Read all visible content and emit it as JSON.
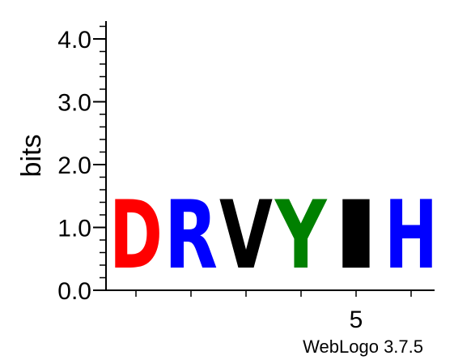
{
  "chart_data": {
    "type": "sequence-logo",
    "ylabel": "bits",
    "ylim": [
      0,
      4.3
    ],
    "yticks": [
      {
        "value": 0.0,
        "label": "0.0"
      },
      {
        "value": 1.0,
        "label": "1.0"
      },
      {
        "value": 2.0,
        "label": "2.0"
      },
      {
        "value": 3.0,
        "label": "3.0"
      },
      {
        "value": 4.0,
        "label": "4.0"
      }
    ],
    "positions": [
      1,
      2,
      3,
      4,
      5,
      6
    ],
    "xtick_labels": [
      {
        "position": 5,
        "label": "5"
      }
    ],
    "stacks": [
      {
        "position": 1,
        "letters": [
          {
            "letter": "D",
            "bits": 1.75,
            "color": "#ff0000"
          }
        ]
      },
      {
        "position": 2,
        "letters": [
          {
            "letter": "R",
            "bits": 1.75,
            "color": "#0000ff"
          }
        ]
      },
      {
        "position": 3,
        "letters": [
          {
            "letter": "V",
            "bits": 1.75,
            "color": "#000000"
          }
        ]
      },
      {
        "position": 4,
        "letters": [
          {
            "letter": "Y",
            "bits": 1.75,
            "color": "#008000"
          }
        ]
      },
      {
        "position": 5,
        "letters": [
          {
            "letter": "I",
            "bits": 1.75,
            "color": "#000000"
          }
        ]
      },
      {
        "position": 6,
        "letters": [
          {
            "letter": "H",
            "bits": 1.75,
            "color": "#0000ff"
          }
        ]
      }
    ]
  },
  "footer": {
    "credit": "WebLogo 3.7.5"
  }
}
